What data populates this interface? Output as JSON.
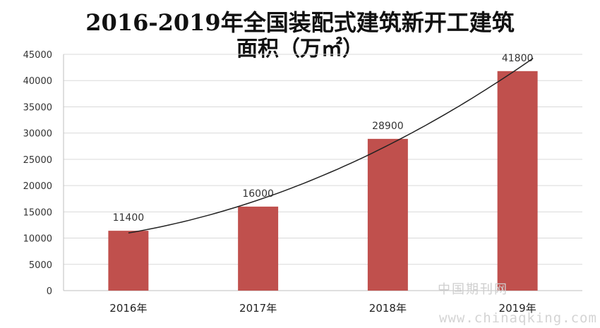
{
  "chart_data": {
    "type": "bar",
    "title": "2016-2019年全国装配式建筑新开工建筑",
    "subtitle": "面积（万㎡）",
    "categories": [
      "2016年",
      "2017年",
      "2018年",
      "2019年"
    ],
    "values": [
      11400,
      16000,
      28900,
      41800
    ],
    "data_labels": [
      "11400",
      "16000",
      "28900",
      "41800"
    ],
    "ylim": [
      0,
      45000
    ],
    "yticks": [
      0,
      5000,
      10000,
      15000,
      20000,
      25000,
      30000,
      35000,
      40000,
      45000
    ],
    "grid": true,
    "legend": "none",
    "bar_color": "#c0504d",
    "trendline": true,
    "trendline_color": "#222222"
  },
  "watermark": {
    "cn": "中国期刊网",
    "url": "www.chinaqking.com"
  }
}
